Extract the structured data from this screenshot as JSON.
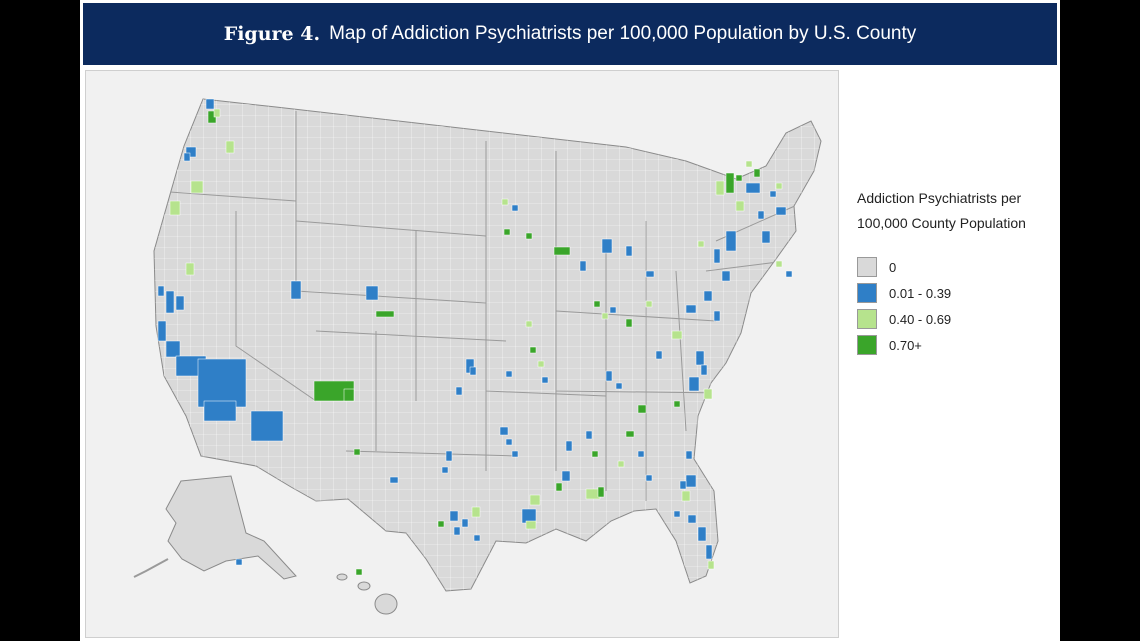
{
  "figure": {
    "label": "Figure 4.",
    "title": "Map of Addiction Psychiatrists per 100,000 Population by U.S. County"
  },
  "legend": {
    "title_lines": [
      "Addiction Psychiatrists per",
      "100,000 County Population"
    ],
    "items": [
      {
        "label": "0",
        "color": "#d9d9d9"
      },
      {
        "label": "0.01 - 0.39",
        "color": "#2f7fc7"
      },
      {
        "label": "0.40 - 0.69",
        "color": "#b6e38d"
      },
      {
        "label": "0.70+",
        "color": "#3aa52a"
      }
    ]
  },
  "map_colors": {
    "land": "#d9d9d9",
    "border": "#ffffff",
    "background": "#f1f1f1"
  }
}
